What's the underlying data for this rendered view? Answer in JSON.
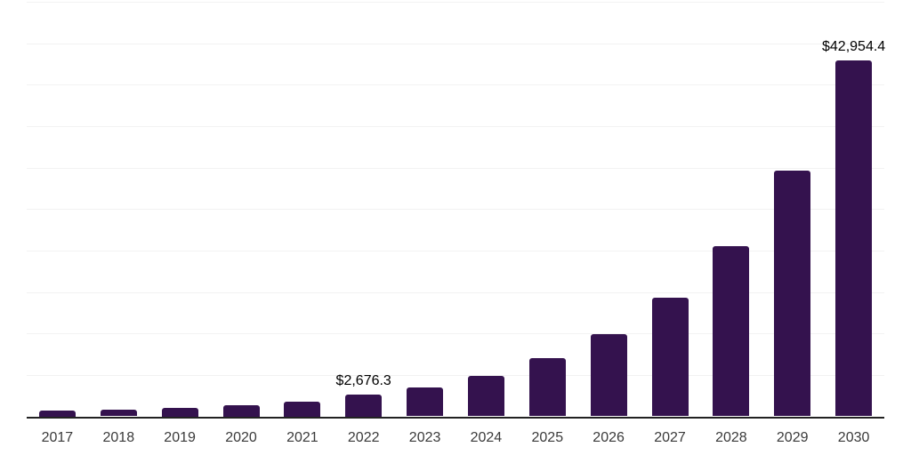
{
  "chart_data": {
    "type": "bar",
    "title": "",
    "xlabel": "",
    "ylabel": "",
    "categories": [
      "2017",
      "2018",
      "2019",
      "2020",
      "2021",
      "2022",
      "2023",
      "2024",
      "2025",
      "2026",
      "2027",
      "2028",
      "2029",
      "2030"
    ],
    "values": [
      700,
      770,
      1020,
      1340,
      1770,
      2676.3,
      3450,
      4900,
      7000,
      9940,
      14300,
      20550,
      29650,
      42954.4
    ],
    "values_note": "only 2022 and 2030 are labeled on the chart; other values estimated from bar heights against gridlines",
    "data_labels": [
      null,
      null,
      null,
      null,
      null,
      "$2,676.3",
      null,
      null,
      null,
      null,
      null,
      null,
      null,
      "$42,954.4"
    ],
    "ylim": [
      0,
      50000
    ],
    "gridline_step": 5000,
    "grid": "horizontal",
    "y_tick_labels_shown": false,
    "legend": "none",
    "colors": {
      "bar": "#34124E",
      "axis_line": "#222222",
      "gridline": "#F2F2F2",
      "tick_label": "#3A3A3A",
      "data_label": "#000000",
      "background": "#FFFFFF"
    }
  }
}
